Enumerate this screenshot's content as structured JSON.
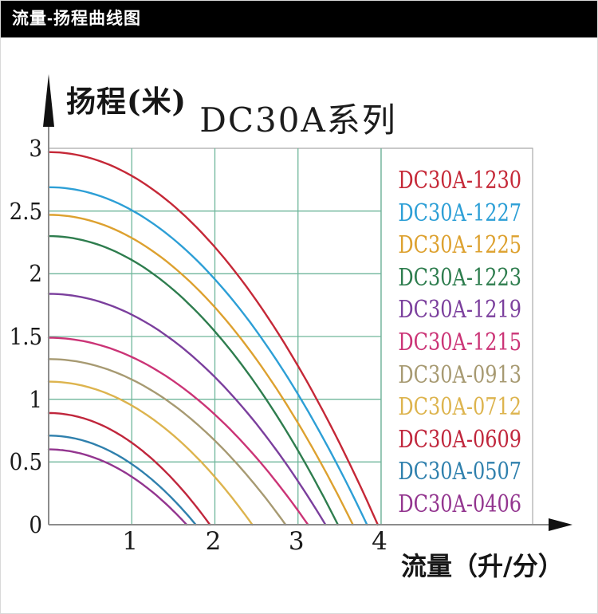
{
  "header": {
    "title": "流量-扬程曲线图"
  },
  "chart_data": {
    "type": "line",
    "title": "DC30A系列",
    "ylabel": "扬程(米)",
    "xlabel": "流量（升/分）",
    "xlim": [
      0,
      4.3
    ],
    "ylim": [
      0,
      3
    ],
    "grid": true,
    "grid_color": "#6fb69b",
    "frame_color": "#a9a9a9",
    "axis_color": "#8c8c8c",
    "arrow_color": "#111111",
    "legend_position": "right",
    "x_ticks": [
      {
        "label": "1",
        "value": 1
      },
      {
        "label": "2",
        "value": 2
      },
      {
        "label": "3",
        "value": 3
      },
      {
        "label": "4",
        "value": 4
      }
    ],
    "y_ticks": [
      {
        "label": "0",
        "value": 0
      },
      {
        "label": "0.5",
        "value": 0.5
      },
      {
        "label": "1",
        "value": 1
      },
      {
        "label": "1.5",
        "value": 1.5
      },
      {
        "label": "2",
        "value": 2
      },
      {
        "label": "2.5",
        "value": 2.5
      },
      {
        "label": "3",
        "value": 3
      }
    ],
    "curve_model": "head_m = head_at_zero_flow_m * (1 - (flow/max_flow_lpm)^2)",
    "series": [
      {
        "name": "DC30A-1230",
        "color": "#c52837",
        "head_at_zero_flow_m": 2.97,
        "max_flow_lpm": 3.96
      },
      {
        "name": "DC30A-1227",
        "color": "#2d9fd6",
        "head_at_zero_flow_m": 2.69,
        "max_flow_lpm": 3.83
      },
      {
        "name": "DC30A-1225",
        "color": "#dda12f",
        "head_at_zero_flow_m": 2.47,
        "max_flow_lpm": 3.66
      },
      {
        "name": "DC30A-1223",
        "color": "#2e7d4e",
        "head_at_zero_flow_m": 2.3,
        "max_flow_lpm": 3.48
      },
      {
        "name": "DC30A-1219",
        "color": "#7b3f9d",
        "head_at_zero_flow_m": 1.84,
        "max_flow_lpm": 3.33
      },
      {
        "name": "DC30A-1215",
        "color": "#cb3476",
        "head_at_zero_flow_m": 1.49,
        "max_flow_lpm": 3.12
      },
      {
        "name": "DC30A-0913",
        "color": "#a79a72",
        "head_at_zero_flow_m": 1.32,
        "max_flow_lpm": 2.85
      },
      {
        "name": "DC30A-0712",
        "color": "#ddb44e",
        "head_at_zero_flow_m": 1.14,
        "max_flow_lpm": 2.45
      },
      {
        "name": "DC30A-0609",
        "color": "#c0263c",
        "head_at_zero_flow_m": 0.89,
        "max_flow_lpm": 1.94
      },
      {
        "name": "DC30A-0507",
        "color": "#2f80ad",
        "head_at_zero_flow_m": 0.71,
        "max_flow_lpm": 1.77
      },
      {
        "name": "DC30A-0406",
        "color": "#93358f",
        "head_at_zero_flow_m": 0.6,
        "max_flow_lpm": 1.66
      }
    ]
  }
}
